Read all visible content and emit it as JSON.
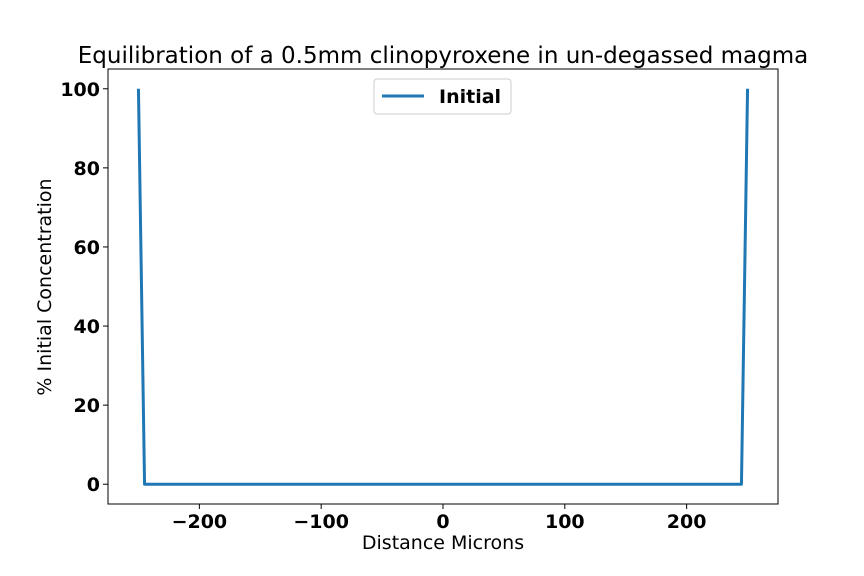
{
  "chart_data": {
    "type": "line",
    "title": "Equilibration of a 0.5mm clinopyroxene in un-degassed magma",
    "xlabel": "Distance Microns",
    "ylabel": "% Initial Concentration",
    "xlim": [
      -275,
      275
    ],
    "ylim": [
      -5,
      105
    ],
    "xticks": [
      -200,
      -100,
      0,
      100,
      200
    ],
    "xtick_labels": [
      "−200",
      "−100",
      "0",
      "100",
      "200"
    ],
    "yticks": [
      0,
      20,
      40,
      60,
      80,
      100
    ],
    "ytick_labels": [
      "0",
      "20",
      "40",
      "60",
      "80",
      "100"
    ],
    "grid": false,
    "legend_position": "upper center",
    "series": [
      {
        "name": "Initial",
        "color": "#1f77b4",
        "x": [
          -250,
          -245,
          245,
          250
        ],
        "y": [
          100,
          0,
          0,
          100
        ]
      }
    ]
  }
}
